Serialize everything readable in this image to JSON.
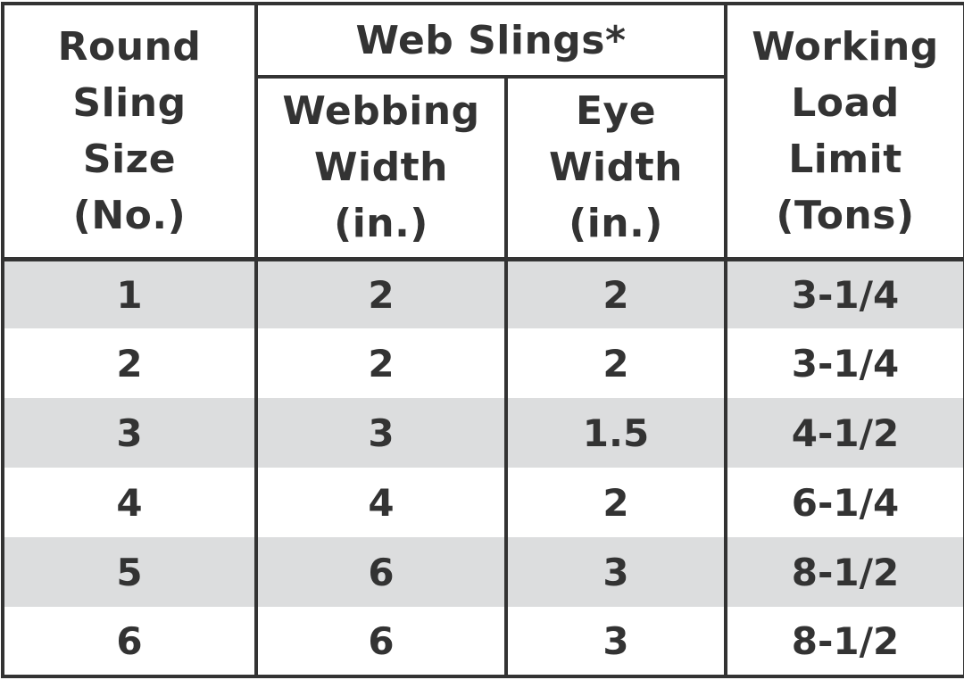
{
  "table": {
    "header": {
      "round_sling_size": [
        "Round",
        "Sling",
        "Size",
        "(No.)"
      ],
      "web_slings_group": "Web Slings*",
      "webbing_width": [
        "Webbing",
        "Width",
        "(in.)"
      ],
      "eye_width": [
        "Eye",
        "Width",
        "(in.)"
      ],
      "working_load_limit": [
        "Working",
        "Load",
        "Limit",
        "(Tons)"
      ]
    },
    "rows": [
      {
        "size": "1",
        "webbing": "2",
        "eye": "2",
        "wll": "3-1/4"
      },
      {
        "size": "2",
        "webbing": "2",
        "eye": "2",
        "wll": "3-1/4"
      },
      {
        "size": "3",
        "webbing": "3",
        "eye": "1.5",
        "wll": "4-1/2"
      },
      {
        "size": "4",
        "webbing": "4",
        "eye": "2",
        "wll": "6-1/4"
      },
      {
        "size": "5",
        "webbing": "6",
        "eye": "3",
        "wll": "8-1/2"
      },
      {
        "size": "6",
        "webbing": "6",
        "eye": "3",
        "wll": "8-1/2"
      }
    ],
    "row_shading_color": "#dcddde",
    "border_color": "#333333",
    "text_color": "#333333"
  }
}
